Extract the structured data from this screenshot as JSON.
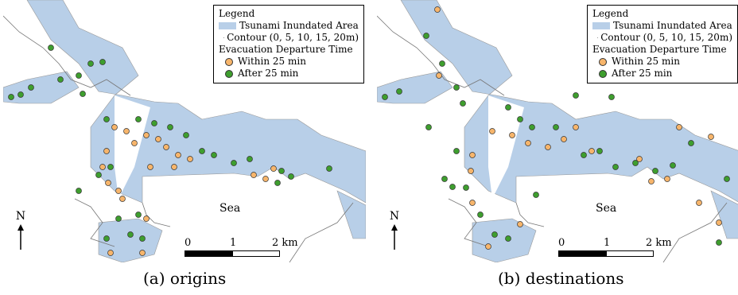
{
  "panels": [
    {
      "caption": "(a) origins",
      "legend": {
        "title": "Legend",
        "area": "Tsunami Inundated Area",
        "contour": "Contour (0, 5, 10, 15, 20m)",
        "group": "Evacuation Departure Time",
        "within": "Within 25 min",
        "after": "After 25 min"
      },
      "sea": "Sea",
      "north": "N",
      "scale": {
        "l0": "0",
        "l1": "1",
        "l2": "2 km"
      }
    },
    {
      "caption": "(b) destinations",
      "legend": {
        "title": "Legend",
        "area": "Tsunami Inundated Area",
        "contour": "Contour (0, 5, 10, 15, 20m)",
        "group": "Evacuation Departure Time",
        "within": "Within 25 min",
        "after": "After 25 min"
      },
      "sea": "Sea",
      "north": "N",
      "scale": {
        "l0": "0",
        "l1": "1",
        "l2": "2 km"
      }
    }
  ],
  "colors": {
    "inundated": "#b8cfe8",
    "contour": "#999999",
    "within": "#f7b56b",
    "after": "#3e9e2e",
    "channel": "#ffffff"
  }
}
